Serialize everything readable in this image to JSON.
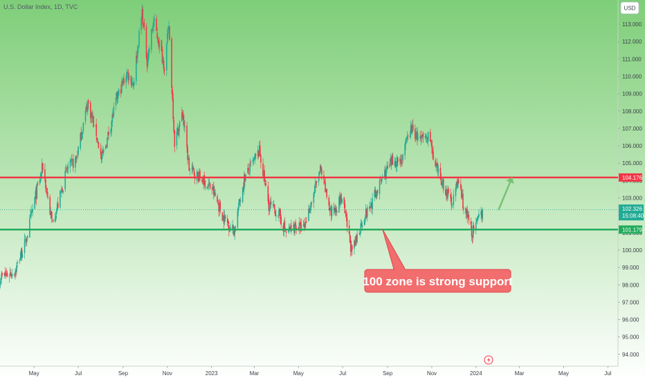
{
  "header": {
    "symbol_title": "U.S. Dollar Index, 1D, TVC"
  },
  "currency_button": {
    "label": "USD"
  },
  "chart_data": {
    "type": "candlestick",
    "title": "U.S. Dollar Index, 1D, TVC",
    "y_axis": {
      "min": 94,
      "max": 113.8,
      "ticks": [
        94,
        95,
        96,
        97,
        98,
        99,
        100,
        101,
        102,
        103,
        104,
        105,
        106,
        107,
        108,
        109,
        110,
        111,
        112,
        113
      ],
      "tick_labels": [
        "94.000",
        "95.000",
        "96.000",
        "97.000",
        "98.000",
        "99.000",
        "100.000",
        "101.000",
        "102.000",
        "103.000",
        "104.000",
        "105.000",
        "106.000",
        "107.000",
        "108.000",
        "109.000",
        "110.000",
        "111.000",
        "112.000",
        "113.000"
      ]
    },
    "x_axis": {
      "start": "2022-03-15",
      "end": "2024-07-15",
      "ticks": [
        {
          "date": "2022-05-01",
          "label": "May"
        },
        {
          "date": "2022-07-01",
          "label": "Jul"
        },
        {
          "date": "2022-09-01",
          "label": "Sep"
        },
        {
          "date": "2022-11-01",
          "label": "Nov"
        },
        {
          "date": "2023-01-01",
          "label": "2023"
        },
        {
          "date": "2023-03-01",
          "label": "Mar"
        },
        {
          "date": "2023-05-01",
          "label": "May"
        },
        {
          "date": "2023-07-01",
          "label": "Jul"
        },
        {
          "date": "2023-09-01",
          "label": "Sep"
        },
        {
          "date": "2023-11-01",
          "label": "Nov"
        },
        {
          "date": "2024-01-01",
          "label": "2024"
        },
        {
          "date": "2024-03-01",
          "label": "Mar"
        },
        {
          "date": "2024-05-01",
          "label": "May"
        },
        {
          "date": "2024-07-01",
          "label": "Jul"
        }
      ]
    },
    "price_path": [
      [
        "2022-03-15",
        98.4
      ],
      [
        "2022-04-05",
        98.8
      ],
      [
        "2022-04-20",
        100.6
      ],
      [
        "2022-05-03",
        103.1
      ],
      [
        "2022-05-13",
        104.8
      ],
      [
        "2022-05-25",
        101.7
      ],
      [
        "2022-06-01",
        102.3
      ],
      [
        "2022-06-15",
        104.6
      ],
      [
        "2022-06-28",
        105.2
      ],
      [
        "2022-07-14",
        108.5
      ],
      [
        "2022-07-26",
        106.7
      ],
      [
        "2022-08-02",
        105.2
      ],
      [
        "2022-08-10",
        106.4
      ],
      [
        "2022-08-23",
        108.7
      ],
      [
        "2022-09-06",
        110.2
      ],
      [
        "2022-09-15",
        109.6
      ],
      [
        "2022-09-27",
        113.7
      ],
      [
        "2022-10-04",
        110.9
      ],
      [
        "2022-10-13",
        113.2
      ],
      [
        "2022-10-28",
        110.6
      ],
      [
        "2022-11-03",
        112.9
      ],
      [
        "2022-11-11",
        106.2
      ],
      [
        "2022-11-22",
        107.9
      ],
      [
        "2022-12-01",
        104.7
      ],
      [
        "2022-12-15",
        104.2
      ],
      [
        "2023-01-02",
        103.5
      ],
      [
        "2023-01-17",
        101.9
      ],
      [
        "2023-02-01",
        101.1
      ],
      [
        "2023-02-15",
        104.1
      ],
      [
        "2023-03-08",
        105.7
      ],
      [
        "2023-03-21",
        102.6
      ],
      [
        "2023-04-03",
        102.1
      ],
      [
        "2023-04-14",
        101.0
      ],
      [
        "2023-04-27",
        101.4
      ],
      [
        "2023-05-08",
        101.2
      ],
      [
        "2023-05-31",
        104.6
      ],
      [
        "2023-06-15",
        102.1
      ],
      [
        "2023-06-30",
        103.0
      ],
      [
        "2023-07-14",
        99.8
      ],
      [
        "2023-07-28",
        101.7
      ],
      [
        "2023-08-10",
        102.7
      ],
      [
        "2023-08-25",
        104.2
      ],
      [
        "2023-09-08",
        105.1
      ],
      [
        "2023-09-20",
        105.2
      ],
      [
        "2023-10-03",
        107.0
      ],
      [
        "2023-10-16",
        106.3
      ],
      [
        "2023-10-30",
        106.6
      ],
      [
        "2023-11-03",
        105.0
      ],
      [
        "2023-11-14",
        104.0
      ],
      [
        "2023-11-28",
        102.7
      ],
      [
        "2023-12-08",
        104.0
      ],
      [
        "2023-12-15",
        102.5
      ],
      [
        "2023-12-27",
        101.0
      ],
      [
        "2024-01-02",
        101.5
      ],
      [
        "2024-01-10",
        102.3
      ]
    ],
    "horizontal_lines": [
      {
        "level": 104.176,
        "label": "104.176",
        "color": "#f23645"
      },
      {
        "level": 101.179,
        "label": "101.179",
        "color": "#22ab5c"
      }
    ],
    "last_price": {
      "value": "102.326",
      "countdown": "15:08:40",
      "color": "#22ab94"
    },
    "annotations": [
      {
        "type": "callout",
        "text": "100 zone is strong support",
        "bg_color": "#f26d6d",
        "border_color": "#e0444a",
        "points_to": {
          "date": "2023-08-25",
          "value": 101.2
        }
      },
      {
        "type": "arrow",
        "color": "#76c173",
        "from": {
          "date": "2024-02-01",
          "value": 102.3
        },
        "to": {
          "date": "2024-02-20",
          "value": 104.2
        }
      }
    ],
    "colors": {
      "up": "#22ab94",
      "down": "#f23645",
      "background_top": "#7ece79",
      "background_bottom": "#ffffff",
      "axis_text": "#3a3f47"
    },
    "grid": false,
    "legend": "none"
  }
}
